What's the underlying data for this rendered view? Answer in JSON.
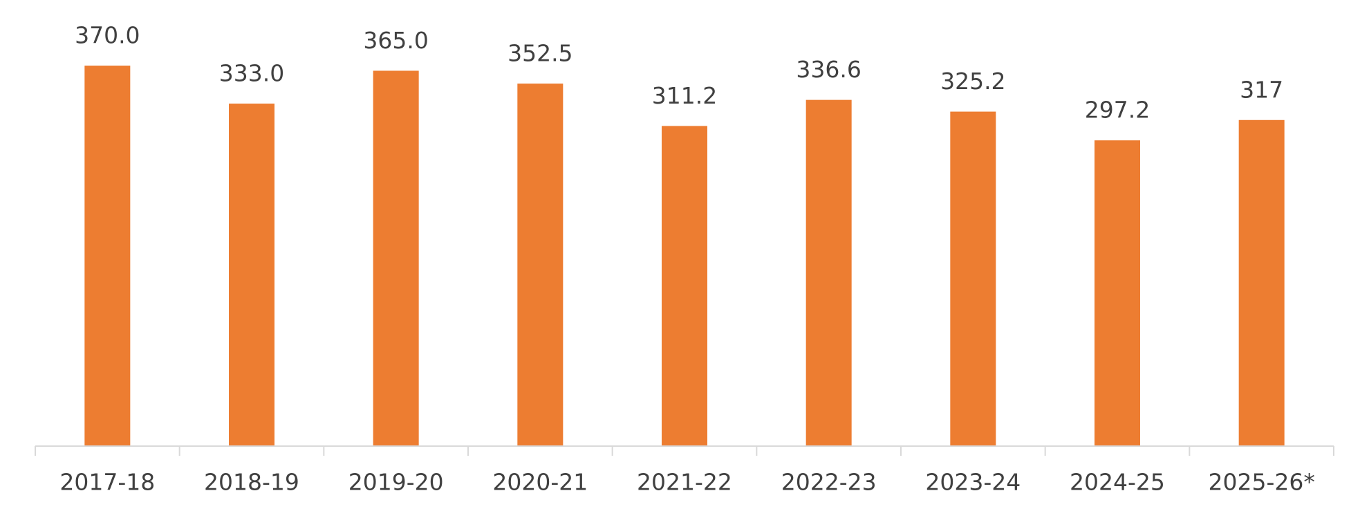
{
  "chart_data": {
    "type": "bar",
    "categories": [
      "2017-18",
      "2018-19",
      "2019-20",
      "2020-21",
      "2021-22",
      "2022-23",
      "2023-24",
      "2024-25",
      "2025-26*"
    ],
    "values": [
      370,
      333,
      365,
      352.5,
      311.2,
      336.6,
      325.2,
      297.2,
      317
    ],
    "value_labels": [
      "370.0",
      "333.0",
      "365.0",
      "352.5",
      "311.2",
      "336.6",
      "325.2",
      "297.2",
      "317"
    ],
    "color": "#ED7D31"
  }
}
